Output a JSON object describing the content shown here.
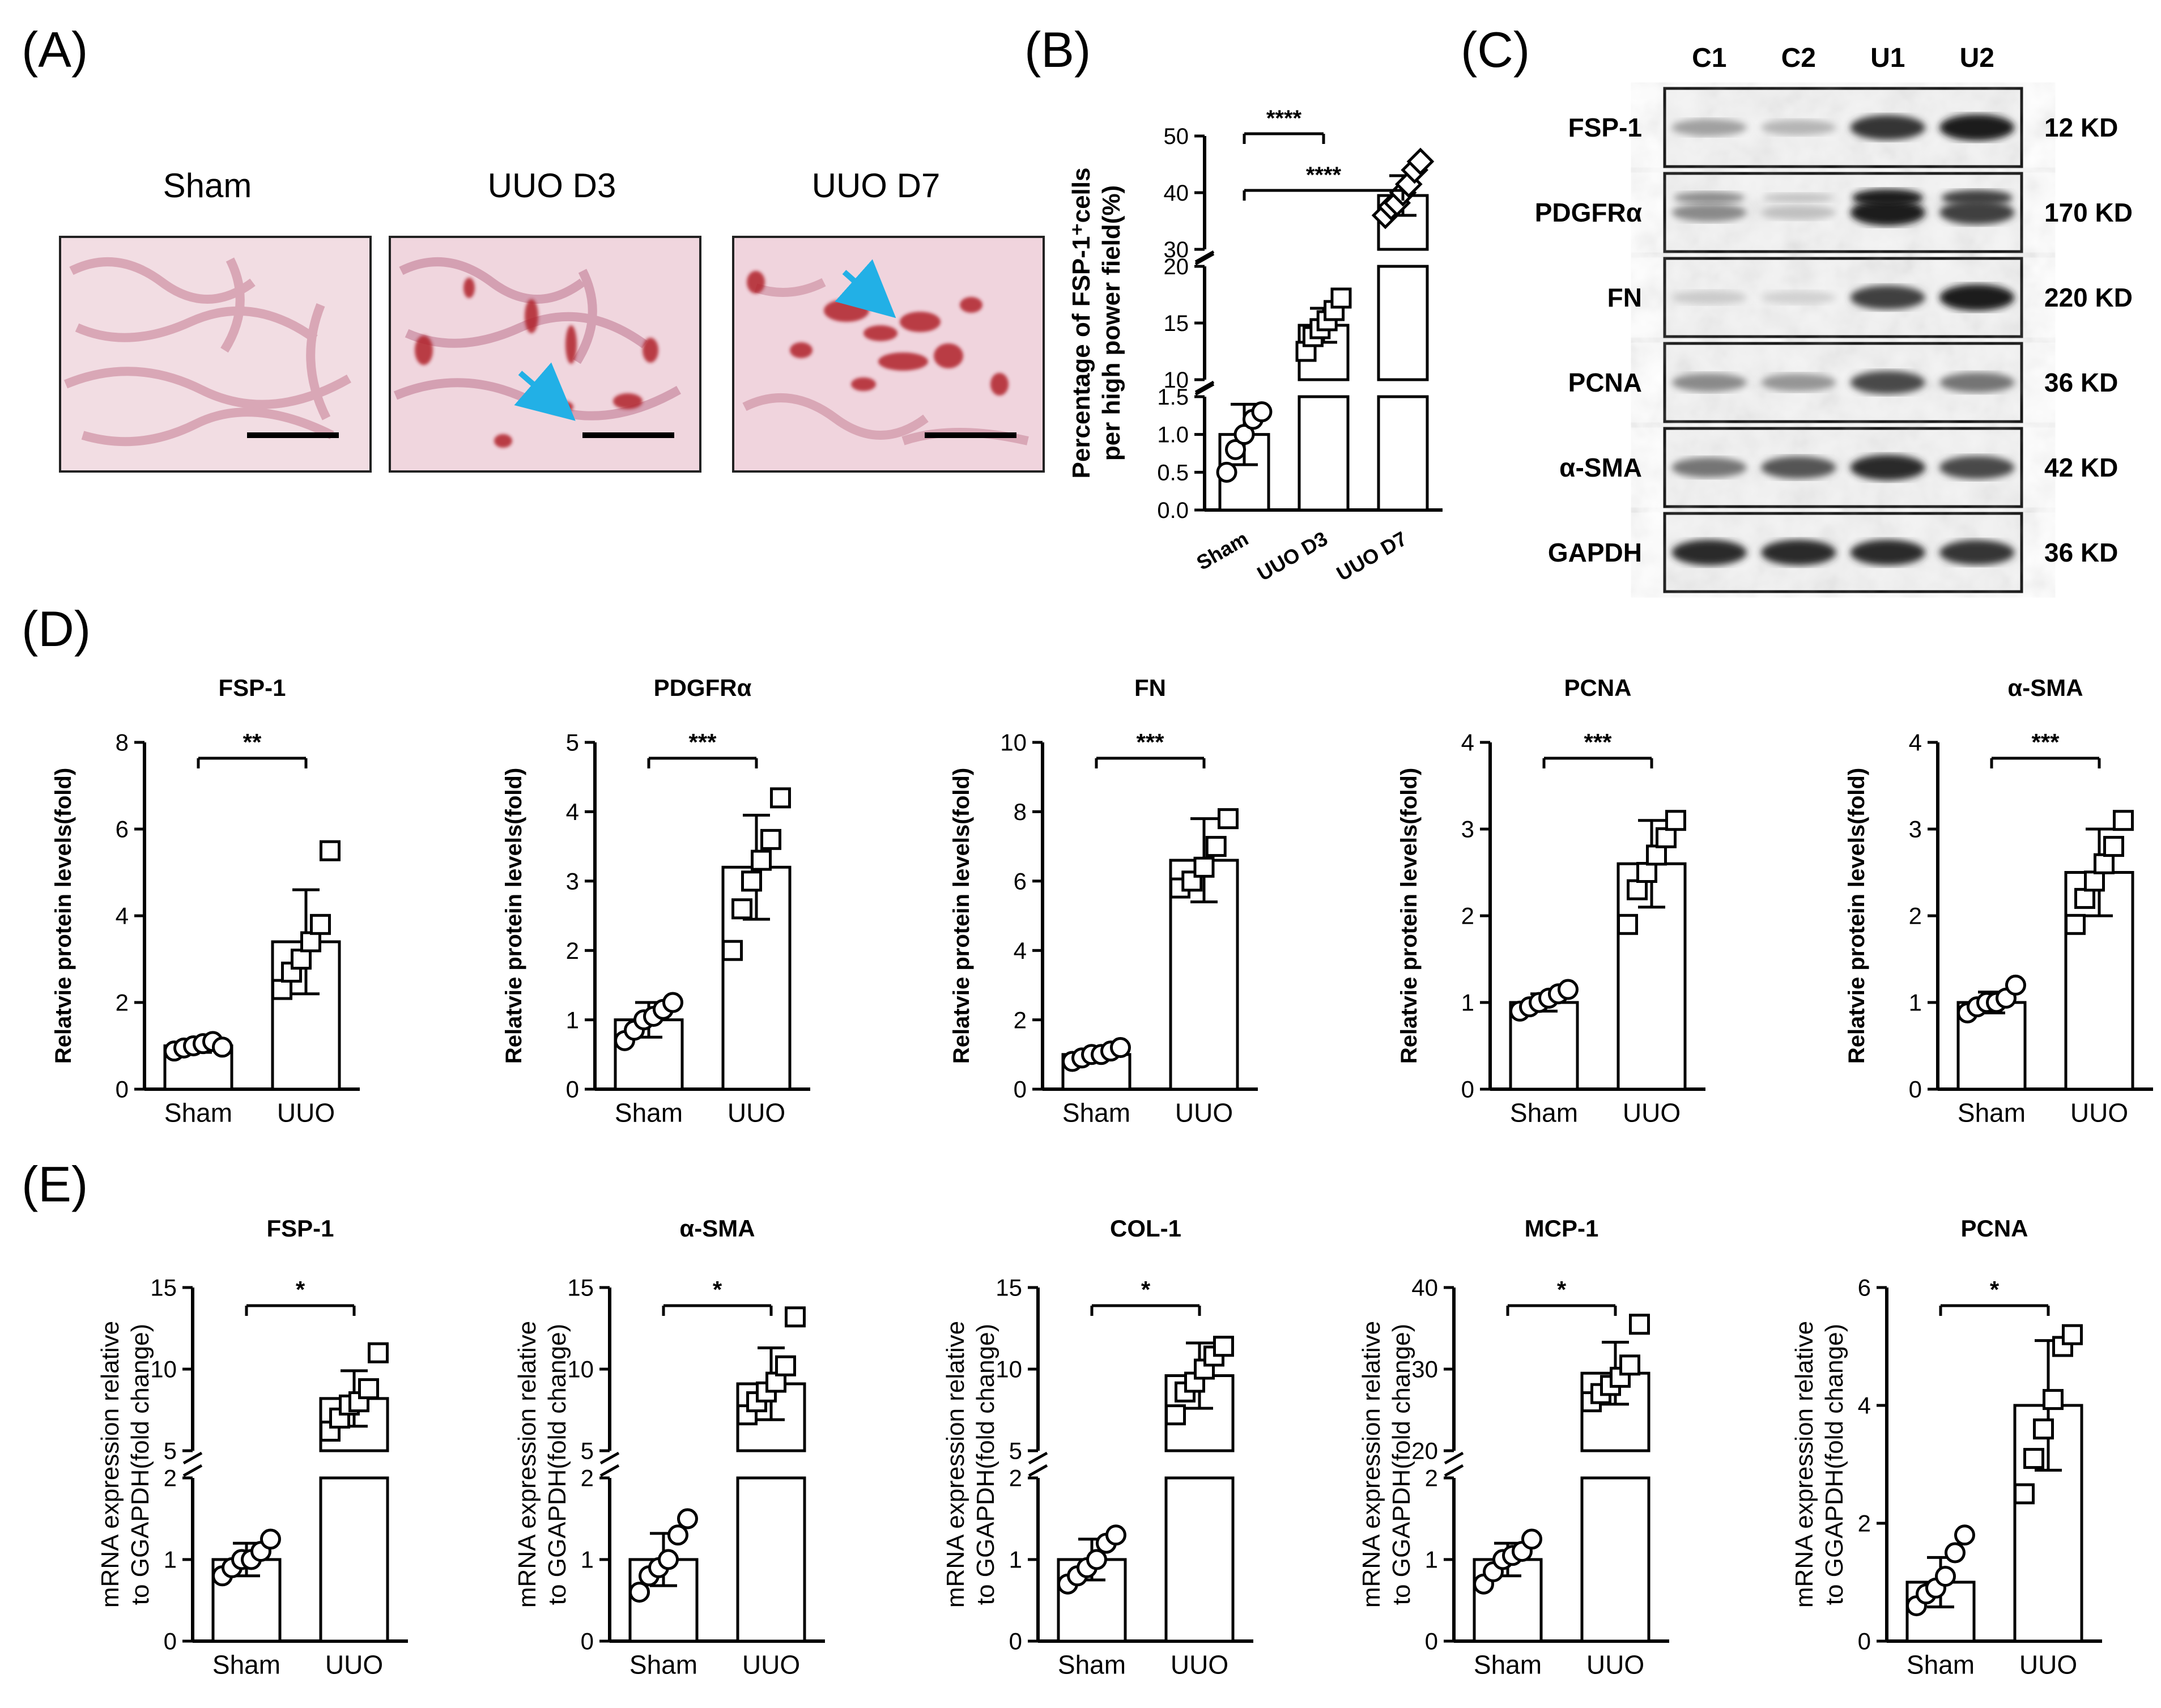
{
  "panel_labels": [
    "(A)",
    "(B)",
    "(C)",
    "(D)",
    "(E)"
  ],
  "panel_a": {
    "images": [
      {
        "label": "Sham",
        "tissue": "sham-tissue-micrograph"
      },
      {
        "label": "UUO D3",
        "tissue": "uuo-d3-tissue-micrograph"
      },
      {
        "label": "UUO D7",
        "tissue": "uuo-d7-tissue-micrograph"
      }
    ],
    "colors": {
      "tissue_bg": "#f2dde3",
      "stain": "#b0202c",
      "nuclei": "#8c7fae",
      "arrow": "#22b0e6"
    }
  },
  "panel_c": {
    "lanes": [
      "C1",
      "C2",
      "U1",
      "U2"
    ],
    "blots": [
      {
        "protein": "FSP-1",
        "size": "12 KD",
        "intensity": [
          0.35,
          0.25,
          0.85,
          0.95
        ]
      },
      {
        "protein": "PDGFRα",
        "size": "170 KD",
        "intensity": [
          0.45,
          0.2,
          0.95,
          0.8
        ]
      },
      {
        "protein": "FN",
        "size": "220 KD",
        "intensity": [
          0.15,
          0.12,
          0.8,
          0.95
        ]
      },
      {
        "protein": "PCNA",
        "size": "36 KD",
        "intensity": [
          0.45,
          0.4,
          0.75,
          0.55
        ]
      },
      {
        "protein": "α-SMA",
        "size": "42 KD",
        "intensity": [
          0.55,
          0.7,
          0.9,
          0.75
        ]
      },
      {
        "protein": "GAPDH",
        "size": "36 KD",
        "intensity": [
          0.9,
          0.9,
          0.9,
          0.85
        ]
      }
    ]
  },
  "chart_data": [
    {
      "id": "B",
      "type": "bar",
      "broken_axis": true,
      "title": "",
      "ylabel_line1": "Percentage of FSP-1⁺cells",
      "ylabel_line2": "per high power field(%)",
      "categories": [
        "Sham",
        "UUO D3",
        "UUO D7"
      ],
      "values": [
        1.0,
        14.8,
        39.5
      ],
      "errors": [
        0.4,
        1.5,
        3.5
      ],
      "points": [
        [
          0.5,
          0.8,
          1.0,
          1.2,
          1.3
        ],
        [
          12.5,
          13.8,
          14.5,
          15.2,
          16.1,
          17.2
        ],
        [
          36,
          37.5,
          38.2,
          40,
          41.5,
          44,
          45.5
        ]
      ],
      "markers": [
        "circle",
        "square",
        "diamond"
      ],
      "segments": [
        {
          "min": 0,
          "max": 1.5,
          "ticks": [
            0.0,
            0.5,
            1.0,
            1.5
          ],
          "tick_labels": [
            "0.0",
            "0.5",
            "1.0",
            "1.5"
          ]
        },
        {
          "min": 10,
          "max": 20,
          "ticks": [
            10,
            15,
            20
          ],
          "tick_labels": [
            "10",
            "15",
            "20"
          ]
        },
        {
          "min": 30,
          "max": 50,
          "ticks": [
            30,
            40,
            50
          ],
          "tick_labels": [
            "30",
            "40",
            "50"
          ]
        }
      ],
      "sig": [
        {
          "from": 0,
          "to": 1,
          "label": "****"
        },
        {
          "from": 0,
          "to": 2,
          "label": "****"
        }
      ]
    },
    {
      "id": "D1",
      "type": "bar",
      "title": "FSP-1",
      "ylabel": "Relatvie protein levels(fold)",
      "ylim": [
        0,
        8
      ],
      "ticks": [
        0,
        2,
        4,
        6,
        8
      ],
      "categories": [
        "Sham",
        "UUO"
      ],
      "values": [
        1.0,
        3.4
      ],
      "errors": [
        0.15,
        1.2
      ],
      "points": [
        [
          0.88,
          0.95,
          1.0,
          1.05,
          1.1,
          0.97
        ],
        [
          2.3,
          2.7,
          3.0,
          3.4,
          3.8,
          5.5
        ]
      ],
      "sig": "**"
    },
    {
      "id": "D2",
      "type": "bar",
      "title": "PDGFRα",
      "ylabel": "Relatvie protein levels(fold)",
      "ylim": [
        0,
        5
      ],
      "ticks": [
        0,
        1,
        2,
        3,
        4,
        5
      ],
      "categories": [
        "Sham",
        "UUO"
      ],
      "values": [
        1.0,
        3.2
      ],
      "errors": [
        0.25,
        0.75
      ],
      "points": [
        [
          0.7,
          0.85,
          1.0,
          1.05,
          1.15,
          1.25
        ],
        [
          2.0,
          2.6,
          3.0,
          3.3,
          3.6,
          4.2
        ]
      ],
      "sig": "***"
    },
    {
      "id": "D3",
      "type": "bar",
      "title": "FN",
      "ylabel": "Relatvie protein levels(fold)",
      "ylim": [
        0,
        10
      ],
      "ticks": [
        0,
        2,
        4,
        6,
        8,
        10
      ],
      "categories": [
        "Sham",
        "UUO"
      ],
      "values": [
        1.0,
        6.6
      ],
      "errors": [
        0.15,
        1.2
      ],
      "points": [
        [
          0.8,
          0.9,
          1.0,
          1.0,
          1.1,
          1.2
        ],
        [
          5.8,
          6.0,
          6.4,
          7.0,
          7.8
        ]
      ],
      "sig": "***"
    },
    {
      "id": "D4",
      "type": "bar",
      "title": "PCNA",
      "ylabel": "Relatvie protein levels(fold)",
      "ylim": [
        0,
        4
      ],
      "ticks": [
        0,
        1,
        2,
        3,
        4
      ],
      "categories": [
        "Sham",
        "UUO"
      ],
      "values": [
        1.0,
        2.6
      ],
      "errors": [
        0.1,
        0.5
      ],
      "points": [
        [
          0.9,
          0.95,
          1.0,
          1.05,
          1.1,
          1.15
        ],
        [
          1.9,
          2.3,
          2.5,
          2.7,
          2.9,
          3.1
        ]
      ],
      "sig": "***"
    },
    {
      "id": "D5",
      "type": "bar",
      "title": "α-SMA",
      "ylabel": "Relatvie protein levels(fold)",
      "ylim": [
        0,
        4
      ],
      "ticks": [
        0,
        1,
        2,
        3,
        4
      ],
      "categories": [
        "Sham",
        "UUO"
      ],
      "values": [
        1.0,
        2.5
      ],
      "errors": [
        0.12,
        0.5
      ],
      "points": [
        [
          0.88,
          0.95,
          1.0,
          1.0,
          1.05,
          1.2
        ],
        [
          1.9,
          2.2,
          2.4,
          2.6,
          2.8,
          3.1
        ]
      ],
      "sig": "***"
    },
    {
      "id": "E1",
      "type": "bar",
      "broken_axis": true,
      "title": "FSP-1",
      "ylabel_line1": "mRNA expression relative",
      "ylabel_line2": "to GGAPDH(fold change)",
      "categories": [
        "Sham",
        "UUO"
      ],
      "values": [
        1.0,
        8.2
      ],
      "errors": [
        0.2,
        1.7
      ],
      "points": [
        [
          0.8,
          0.9,
          1.0,
          1.0,
          1.1,
          1.25
        ],
        [
          6.2,
          7.0,
          7.8,
          8.0,
          8.8,
          11.0
        ]
      ],
      "segments": [
        {
          "min": 0,
          "max": 2,
          "ticks": [
            0,
            1,
            2
          ],
          "tick_labels": [
            "0",
            "1",
            "2"
          ]
        },
        {
          "min": 5,
          "max": 15,
          "ticks": [
            5,
            10,
            15
          ],
          "tick_labels": [
            "5",
            "10",
            "15"
          ]
        }
      ],
      "sig": "*"
    },
    {
      "id": "E2",
      "type": "bar",
      "broken_axis": true,
      "title": "α-SMA",
      "ylabel_line1": "mRNA expression relative",
      "ylabel_line2": "to GGAPDH(fold change)",
      "categories": [
        "Sham",
        "UUO"
      ],
      "values": [
        1.0,
        9.1
      ],
      "errors": [
        0.32,
        2.2
      ],
      "points": [
        [
          0.6,
          0.8,
          0.9,
          1.0,
          1.3,
          1.5
        ],
        [
          7.2,
          8.0,
          8.6,
          9.2,
          10.2,
          13.2
        ]
      ],
      "segments": [
        {
          "min": 0,
          "max": 2,
          "ticks": [
            0,
            1,
            2
          ],
          "tick_labels": [
            "0",
            "1",
            "2"
          ]
        },
        {
          "min": 5,
          "max": 15,
          "ticks": [
            5,
            10,
            15
          ],
          "tick_labels": [
            "5",
            "10",
            "15"
          ]
        }
      ],
      "sig": "*"
    },
    {
      "id": "E3",
      "type": "bar",
      "broken_axis": true,
      "title": "COL-1",
      "ylabel_line1": "mRNA expression relative",
      "ylabel_line2": "to GGAPDH(fold change)",
      "categories": [
        "Sham",
        "UUO"
      ],
      "values": [
        1.0,
        9.6
      ],
      "errors": [
        0.25,
        2.0
      ],
      "points": [
        [
          0.7,
          0.8,
          0.9,
          1.0,
          1.2,
          1.3
        ],
        [
          7.2,
          8.6,
          9.2,
          10.0,
          10.8,
          11.4
        ]
      ],
      "segments": [
        {
          "min": 0,
          "max": 2,
          "ticks": [
            0,
            1,
            2
          ],
          "tick_labels": [
            "0",
            "1",
            "2"
          ]
        },
        {
          "min": 5,
          "max": 15,
          "ticks": [
            5,
            10,
            15
          ],
          "tick_labels": [
            "5",
            "10",
            "15"
          ]
        }
      ],
      "sig": "*"
    },
    {
      "id": "E4",
      "type": "bar",
      "broken_axis": true,
      "title": "MCP-1",
      "ylabel_line1": "mRNA expression relative",
      "ylabel_line2": "to GGAPDH(fold change)",
      "categories": [
        "Sham",
        "UUO"
      ],
      "values": [
        1.0,
        29.5
      ],
      "errors": [
        0.2,
        3.8
      ],
      "points": [
        [
          0.7,
          0.85,
          1.0,
          1.05,
          1.1,
          1.25
        ],
        [
          26.0,
          27.0,
          28.0,
          29.0,
          30.5,
          35.5
        ]
      ],
      "segments": [
        {
          "min": 0,
          "max": 2,
          "ticks": [
            0,
            1,
            2
          ],
          "tick_labels": [
            "0",
            "1",
            "2"
          ]
        },
        {
          "min": 20,
          "max": 40,
          "ticks": [
            20,
            30,
            40
          ],
          "tick_labels": [
            "20",
            "30",
            "40"
          ]
        }
      ],
      "sig": "*"
    },
    {
      "id": "E5",
      "type": "bar",
      "title": "PCNA",
      "ylabel_line1": "mRNA expression relative",
      "ylabel_line2": "to GGAPDH(fold change)",
      "ylim": [
        0,
        6
      ],
      "ticks": [
        0,
        2,
        4,
        6
      ],
      "categories": [
        "Sham",
        "UUO"
      ],
      "values": [
        1.0,
        4.0
      ],
      "errors": [
        0.42,
        1.1
      ],
      "points": [
        [
          0.6,
          0.8,
          0.9,
          1.1,
          1.5,
          1.8
        ],
        [
          2.5,
          3.1,
          3.6,
          4.1,
          5.0,
          5.2
        ]
      ],
      "sig": "*"
    }
  ]
}
